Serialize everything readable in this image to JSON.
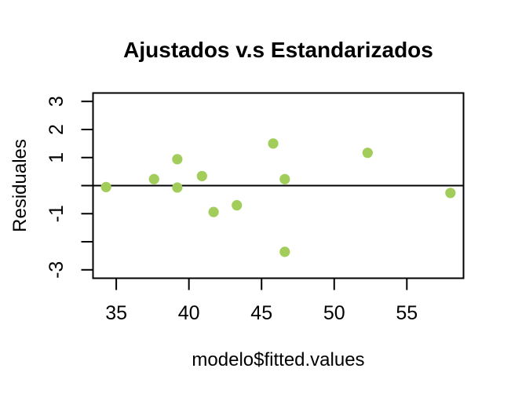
{
  "figure": {
    "background": "#ffffff"
  },
  "chart_data": {
    "type": "scatter",
    "title": "Ajustados v.s Estandarizados",
    "xlabel": "modelo$fitted.values",
    "ylabel": "Residuales",
    "xlim": [
      33.4,
      58.9
    ],
    "ylim": [
      -3.3,
      3.3
    ],
    "x_ticks": [
      35,
      40,
      45,
      50,
      55
    ],
    "x_tick_labels": [
      "35",
      "40",
      "45",
      "50",
      "55"
    ],
    "y_ticks": [
      3,
      2,
      1,
      0,
      -1,
      -2,
      -3
    ],
    "y_tick_labels": [
      "3",
      "2",
      "1",
      "",
      "-1",
      "",
      "-3"
    ],
    "reference_line_y": 0,
    "grid": false,
    "legend": null,
    "point_color": "#a2cd5a",
    "axis_color": "#000000",
    "text_color": "#000000",
    "points": [
      {
        "x": 34.3,
        "y": -0.05
      },
      {
        "x": 37.6,
        "y": 0.23
      },
      {
        "x": 39.2,
        "y": 0.94
      },
      {
        "x": 39.2,
        "y": -0.07
      },
      {
        "x": 40.9,
        "y": 0.34
      },
      {
        "x": 41.7,
        "y": -0.94
      },
      {
        "x": 43.3,
        "y": -0.7
      },
      {
        "x": 45.8,
        "y": 1.5
      },
      {
        "x": 46.6,
        "y": 0.23
      },
      {
        "x": 46.6,
        "y": -2.36
      },
      {
        "x": 52.3,
        "y": 1.17
      },
      {
        "x": 58.0,
        "y": -0.26
      }
    ]
  }
}
